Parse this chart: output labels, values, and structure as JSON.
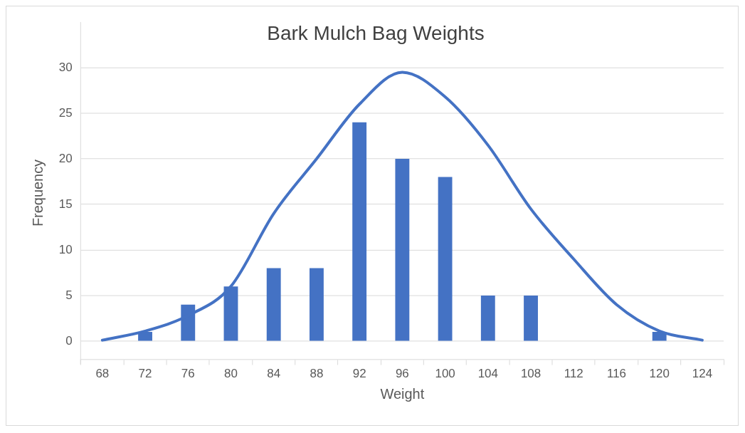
{
  "chart_data": {
    "type": "bar",
    "title": "Bark Mulch Bag Weights",
    "xlabel": "Weight",
    "ylabel": "Frequency",
    "categories": [
      "68",
      "72",
      "76",
      "80",
      "84",
      "88",
      "92",
      "96",
      "100",
      "104",
      "108",
      "112",
      "116",
      "120",
      "124"
    ],
    "series": [
      {
        "color": "#4472c4",
        "values": [
          0,
          1,
          4,
          6,
          8,
          8,
          24,
          20,
          18,
          5,
          5,
          0,
          0,
          1,
          0
        ]
      },
      {
        "type": "line",
        "color": "#4472c4",
        "marker": "none",
        "line_style": "solid",
        "values": [
          0.1,
          1.1,
          2.8,
          6,
          14,
          20,
          26,
          29.5,
          26.8,
          21.5,
          14.5,
          9,
          4,
          1.1,
          0.1
        ]
      }
    ],
    "ylim": [
      -2.5,
      35
    ],
    "yticks": [
      0,
      5,
      10,
      15,
      20,
      25,
      30
    ],
    "grid": "y",
    "legend": false
  }
}
